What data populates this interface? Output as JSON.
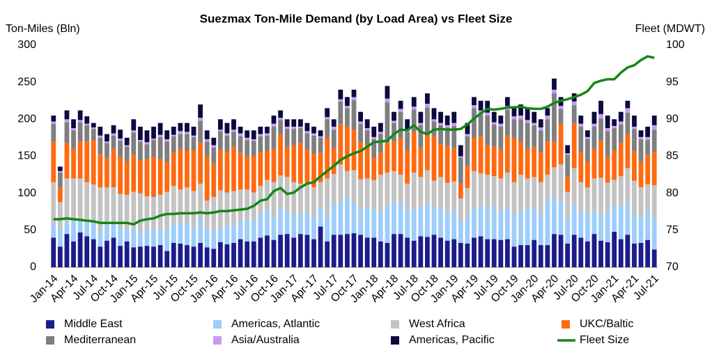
{
  "chart_data": {
    "type": "bar",
    "stacked": true,
    "title": "Suezmax Ton-Mile Demand (by Load Area) vs Fleet Size",
    "y_label": "Ton-Miles (Bln)",
    "y2_label": "Fleet (MDWT)",
    "ylim": [
      0,
      300
    ],
    "yticks": [
      0,
      50,
      100,
      150,
      200,
      250,
      300
    ],
    "y2lim": [
      70,
      100
    ],
    "y2ticks": [
      70,
      75,
      80,
      85,
      90,
      95,
      100
    ],
    "grid": false,
    "categories": [
      "Jan-14",
      null,
      null,
      "Apr-14",
      null,
      null,
      "Jul-14",
      null,
      null,
      "Oct-14",
      null,
      null,
      "Jan-15",
      null,
      null,
      "Apr-15",
      null,
      null,
      "Jul-15",
      null,
      null,
      "Oct-15",
      null,
      null,
      "Jan-16",
      null,
      null,
      "Apr-16",
      null,
      null,
      "Jul-16",
      null,
      null,
      "Oct-16",
      null,
      null,
      "Jan-17",
      null,
      null,
      "Apr-17",
      null,
      null,
      "Jul-17",
      null,
      null,
      "Oct-17",
      null,
      null,
      "Jan-18",
      null,
      null,
      "Apr-18",
      null,
      null,
      "Jul-18",
      null,
      null,
      "Oct-18",
      null,
      null,
      "Jan-19",
      null,
      null,
      "Apr-19",
      null,
      null,
      "Jul-19",
      null,
      null,
      "Oct-19",
      null,
      null,
      "Jan-20",
      null,
      null,
      "Apr-20",
      null,
      null,
      "Jul-20",
      null,
      null,
      "Oct-20",
      null,
      null,
      "Jan-21",
      null,
      null,
      "Apr-21",
      null,
      null,
      "Jul-21"
    ],
    "series": [
      {
        "name": "Middle East",
        "color": "#1c1c8a",
        "values": [
          40,
          28,
          45,
          35,
          47,
          42,
          38,
          28,
          36,
          40,
          29,
          35,
          27,
          28,
          29,
          28,
          30,
          22,
          33,
          32,
          30,
          28,
          33,
          27,
          25,
          34,
          31,
          33,
          38,
          35,
          35,
          40,
          43,
          37,
          44,
          45,
          40,
          45,
          44,
          38,
          55,
          35,
          44,
          44,
          45,
          46,
          44,
          40,
          40,
          35,
          33,
          45,
          45,
          40,
          36,
          42,
          41,
          44,
          40,
          36,
          38,
          33,
          32,
          40,
          42,
          38,
          38,
          37,
          38,
          28,
          30,
          30,
          37,
          30,
          30,
          45,
          44,
          32,
          44,
          40,
          35,
          45,
          36,
          34,
          48,
          38,
          44,
          32,
          33,
          37,
          24
        ]
      },
      {
        "name": "Americas, Atlantic",
        "color": "#9dcdfb",
        "values": [
          20,
          25,
          15,
          30,
          15,
          18,
          22,
          20,
          22,
          20,
          25,
          15,
          25,
          20,
          22,
          25,
          20,
          30,
          25,
          28,
          30,
          25,
          30,
          25,
          25,
          20,
          25,
          22,
          25,
          30,
          28,
          32,
          35,
          30,
          35,
          32,
          30,
          28,
          30,
          30,
          25,
          35,
          40,
          45,
          50,
          40,
          35,
          40,
          38,
          40,
          50,
          45,
          40,
          38,
          42,
          40,
          45,
          38,
          40,
          38,
          38,
          30,
          35,
          40,
          40,
          42,
          45,
          38,
          42,
          42,
          45,
          50,
          45,
          40,
          60,
          50,
          45,
          35,
          40,
          35,
          38,
          30,
          35,
          40,
          35,
          45,
          45,
          40,
          35,
          40,
          42
        ]
      },
      {
        "name": "West Africa",
        "color": "#c3c3c3",
        "values": [
          55,
          35,
          60,
          55,
          58,
          55,
          52,
          60,
          50,
          48,
          45,
          48,
          50,
          52,
          45,
          42,
          48,
          50,
          52,
          45,
          48,
          50,
          50,
          38,
          45,
          50,
          45,
          48,
          42,
          40,
          38,
          38,
          40,
          48,
          45,
          45,
          45,
          40,
          40,
          40,
          35,
          50,
          42,
          50,
          35,
          45,
          40,
          40,
          40,
          50,
          45,
          40,
          40,
          35,
          50,
          40,
          45,
          35,
          42,
          40,
          40,
          30,
          40,
          50,
          45,
          45,
          40,
          45,
          48,
          45,
          50,
          40,
          40,
          45,
          35,
          40,
          50,
          35,
          50,
          40,
          35,
          45,
          50,
          40,
          35,
          40,
          45,
          45,
          40,
          35,
          45
        ]
      },
      {
        "name": "UKC/Baltic",
        "color": "#ff6a10",
        "values": [
          55,
          20,
          48,
          40,
          50,
          55,
          60,
          45,
          40,
          52,
          50,
          45,
          50,
          45,
          50,
          55,
          48,
          40,
          45,
          55,
          50,
          55,
          55,
          60,
          45,
          55,
          55,
          60,
          50,
          45,
          50,
          45,
          40,
          45,
          55,
          40,
          50,
          55,
          45,
          45,
          40,
          55,
          35,
          55,
          60,
          55,
          50,
          45,
          30,
          30,
          40,
          40,
          50,
          45,
          55,
          40,
          50,
          60,
          45,
          50,
          45,
          20,
          30,
          45,
          50,
          40,
          40,
          40,
          50,
          60,
          45,
          40,
          40,
          40,
          45,
          35,
          55,
          20,
          60,
          40,
          35,
          40,
          50,
          35,
          40,
          45,
          45,
          40,
          35,
          40,
          45
        ]
      },
      {
        "name": "Mediterranean",
        "color": "#7f7f7f",
        "values": [
          24,
          20,
          28,
          25,
          26,
          22,
          15,
          22,
          20,
          18,
          22,
          20,
          30,
          25,
          20,
          22,
          30,
          28,
          22,
          20,
          22,
          18,
          30,
          20,
          22,
          25,
          22,
          20,
          22,
          22,
          20,
          22,
          20,
          30,
          20,
          25,
          22,
          20,
          22,
          25,
          20,
          25,
          25,
          30,
          25,
          40,
          25,
          20,
          25,
          25,
          55,
          25,
          35,
          25,
          30,
          30,
          35,
          20,
          25,
          25,
          30,
          35,
          40,
          40,
          30,
          40,
          30,
          30,
          35,
          25,
          30,
          35,
          30,
          30,
          30,
          65,
          20,
          30,
          25,
          35,
          30,
          30,
          30,
          35,
          30,
          25,
          30,
          30,
          30,
          20,
          30
        ]
      },
      {
        "name": "Asia/Australia",
        "color": "#c89bf5",
        "values": [
          3,
          2,
          4,
          3,
          3,
          2,
          2,
          3,
          2,
          3,
          3,
          2,
          3,
          2,
          3,
          2,
          3,
          3,
          2,
          4,
          3,
          2,
          4,
          3,
          3,
          2,
          3,
          3,
          4,
          3,
          2,
          3,
          3,
          4,
          3,
          3,
          3,
          2,
          3,
          3,
          2,
          3,
          4,
          3,
          3,
          4,
          3,
          3,
          3,
          3,
          5,
          3,
          4,
          3,
          4,
          3,
          5,
          3,
          3,
          3,
          4,
          2,
          3,
          4,
          5,
          4,
          3,
          4,
          5,
          4,
          5,
          4,
          3,
          4,
          5,
          5,
          4,
          2,
          5,
          4,
          3,
          4,
          6,
          4,
          3,
          4,
          6,
          3,
          3,
          4,
          6
        ]
      },
      {
        "name": "Americas, Pacific",
        "color": "#0b0b40",
        "values": [
          8,
          6,
          12,
          12,
          13,
          10,
          6,
          12,
          10,
          11,
          12,
          10,
          15,
          18,
          16,
          16,
          16,
          12,
          11,
          11,
          12,
          12,
          18,
          12,
          10,
          14,
          14,
          14,
          9,
          10,
          12,
          10,
          9,
          11,
          10,
          10,
          10,
          10,
          11,
          9,
          8,
          12,
          10,
          13,
          12,
          10,
          13,
          12,
          14,
          12,
          17,
          12,
          11,
          14,
          13,
          15,
          14,
          15,
          15,
          13,
          15,
          15,
          15,
          11,
          13,
          16,
          14,
          11,
          12,
          11,
          15,
          16,
          15,
          11,
          10,
          15,
          12,
          11,
          11,
          11,
          9,
          16,
          18,
          17,
          9,
          13,
          10,
          15,
          9,
          14,
          13
        ]
      },
      {
        "name": "Fleet Size",
        "type": "line",
        "axis": "y2",
        "color": "#168516",
        "values": [
          76.5,
          76.5,
          76.6,
          76.5,
          76.4,
          76.3,
          76.2,
          76.0,
          76.0,
          76.0,
          76.0,
          76.0,
          75.8,
          76.3,
          76.5,
          76.6,
          77.0,
          77.2,
          77.2,
          77.3,
          77.3,
          77.3,
          77.4,
          77.3,
          77.4,
          77.6,
          77.6,
          77.7,
          77.8,
          77.9,
          78.3,
          79.0,
          79.2,
          80.3,
          80.7,
          79.9,
          80.1,
          80.8,
          81.3,
          81.5,
          82.3,
          83.0,
          83.7,
          84.5,
          85.0,
          85.4,
          85.7,
          86.3,
          86.9,
          87.0,
          87.1,
          88.0,
          88.6,
          88.5,
          89.2,
          88.3,
          88.0,
          88.6,
          88.7,
          88.6,
          88.6,
          88.7,
          89.3,
          90.1,
          90.8,
          91.4,
          91.3,
          91.4,
          91.6,
          91.6,
          91.7,
          91.5,
          91.4,
          91.4,
          91.7,
          92.2,
          92.5,
          92.7,
          93.0,
          93.3,
          93.8,
          94.9,
          95.2,
          95.4,
          95.4,
          96.3,
          97.0,
          97.3,
          98.0,
          98.5,
          98.3
        ]
      }
    ]
  }
}
